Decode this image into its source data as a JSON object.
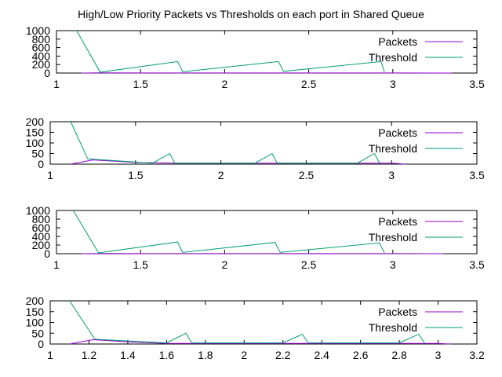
{
  "title": "High/Low Priority Packets vs Thresholds on each port in Shared Queue",
  "colors": {
    "packets": "#9400d3",
    "threshold": "#009e73",
    "axis": "#000000"
  },
  "chart_data": [
    {
      "type": "line",
      "title": "",
      "xlim": [
        1,
        3.5
      ],
      "ylim": [
        0,
        1000
      ],
      "xticks": [
        "1",
        "1.5",
        "2",
        "2.5",
        "3",
        "3.5"
      ],
      "xtick_values": [
        1,
        1.5,
        2,
        2.5,
        3,
        3.5
      ],
      "yticks": [
        "0",
        "200",
        "400",
        "600",
        "800",
        "1000"
      ],
      "ytick_values": [
        0,
        200,
        400,
        600,
        800,
        1000
      ],
      "legend_position": "top-right",
      "series": [
        {
          "name": "Packets",
          "x": [
            1.15,
            1.25,
            1.5,
            2.0,
            2.5,
            3.0,
            3.35
          ],
          "y": [
            0,
            5,
            2,
            2,
            2,
            2,
            0
          ]
        },
        {
          "name": "Threshold",
          "x": [
            1.12,
            1.26,
            1.72,
            1.75,
            2.32,
            2.35,
            2.93,
            2.95
          ],
          "y": [
            1000,
            20,
            270,
            30,
            270,
            40,
            270,
            20
          ]
        }
      ]
    },
    {
      "type": "line",
      "title": "",
      "xlim": [
        1,
        3.5
      ],
      "ylim": [
        0,
        200
      ],
      "xticks": [
        "1",
        "1.5",
        "2",
        "2.5",
        "3",
        "3.5"
      ],
      "xtick_values": [
        1,
        1.5,
        2,
        2.5,
        3,
        3.5
      ],
      "yticks": [
        "0",
        "50",
        "100",
        "150",
        "200"
      ],
      "ytick_values": [
        0,
        50,
        100,
        150,
        200
      ],
      "legend_position": "top-right",
      "series": [
        {
          "name": "Packets",
          "x": [
            1.12,
            1.25,
            1.5,
            1.75,
            2.0,
            2.3,
            2.6,
            2.9,
            3.0,
            3.08
          ],
          "y": [
            0,
            20,
            8,
            5,
            5,
            5,
            5,
            5,
            5,
            0
          ]
        },
        {
          "name": "Threshold",
          "x": [
            1.12,
            1.22,
            1.6,
            1.7,
            1.73,
            2.2,
            2.3,
            2.33,
            2.8,
            2.9,
            2.93
          ],
          "y": [
            200,
            25,
            5,
            50,
            5,
            5,
            50,
            5,
            5,
            50,
            5
          ]
        }
      ]
    },
    {
      "type": "line",
      "title": "",
      "xlim": [
        1,
        3.5
      ],
      "ylim": [
        0,
        1000
      ],
      "xticks": [
        "1",
        "1.5",
        "2",
        "2.5",
        "3",
        "3.5"
      ],
      "xtick_values": [
        1,
        1.5,
        2,
        2.5,
        3,
        3.5
      ],
      "yticks": [
        "0",
        "200",
        "400",
        "600",
        "800",
        "1000"
      ],
      "ytick_values": [
        0,
        200,
        400,
        600,
        800,
        1000
      ],
      "legend_position": "top-right",
      "series": [
        {
          "name": "Packets",
          "x": [
            1.15,
            1.3,
            1.5,
            2.0,
            2.5,
            3.0,
            3.3
          ],
          "y": [
            0,
            5,
            2,
            2,
            2,
            2,
            0
          ]
        },
        {
          "name": "Threshold",
          "x": [
            1.1,
            1.25,
            1.72,
            1.75,
            2.3,
            2.33,
            2.92,
            2.95
          ],
          "y": [
            1000,
            20,
            270,
            30,
            260,
            30,
            250,
            20
          ]
        }
      ]
    },
    {
      "type": "line",
      "title": "",
      "xlim": [
        1,
        3.2
      ],
      "ylim": [
        0,
        200
      ],
      "xticks": [
        "1",
        "1.2",
        "1.4",
        "1.6",
        "1.8",
        "2",
        "2.2",
        "2.4",
        "2.6",
        "2.8",
        "3",
        "3.2"
      ],
      "xtick_values": [
        1,
        1.2,
        1.4,
        1.6,
        1.8,
        2,
        2.2,
        2.4,
        2.6,
        2.8,
        3,
        3.2
      ],
      "yticks": [
        "0",
        "50",
        "100",
        "150",
        "200"
      ],
      "ytick_values": [
        0,
        50,
        100,
        150,
        200
      ],
      "legend_position": "top-right",
      "series": [
        {
          "name": "Packets",
          "x": [
            1.1,
            1.22,
            1.4,
            1.6,
            1.8,
            2.0,
            2.2,
            2.4,
            2.6,
            2.8,
            3.0,
            3.06
          ],
          "y": [
            0,
            20,
            10,
            3,
            3,
            3,
            3,
            3,
            3,
            3,
            3,
            0
          ]
        },
        {
          "name": "Threshold",
          "x": [
            1.1,
            1.23,
            1.6,
            1.7,
            1.73,
            2.2,
            2.3,
            2.33,
            2.8,
            2.9,
            2.93
          ],
          "y": [
            200,
            22,
            5,
            50,
            5,
            5,
            45,
            5,
            5,
            45,
            5
          ]
        }
      ]
    }
  ]
}
